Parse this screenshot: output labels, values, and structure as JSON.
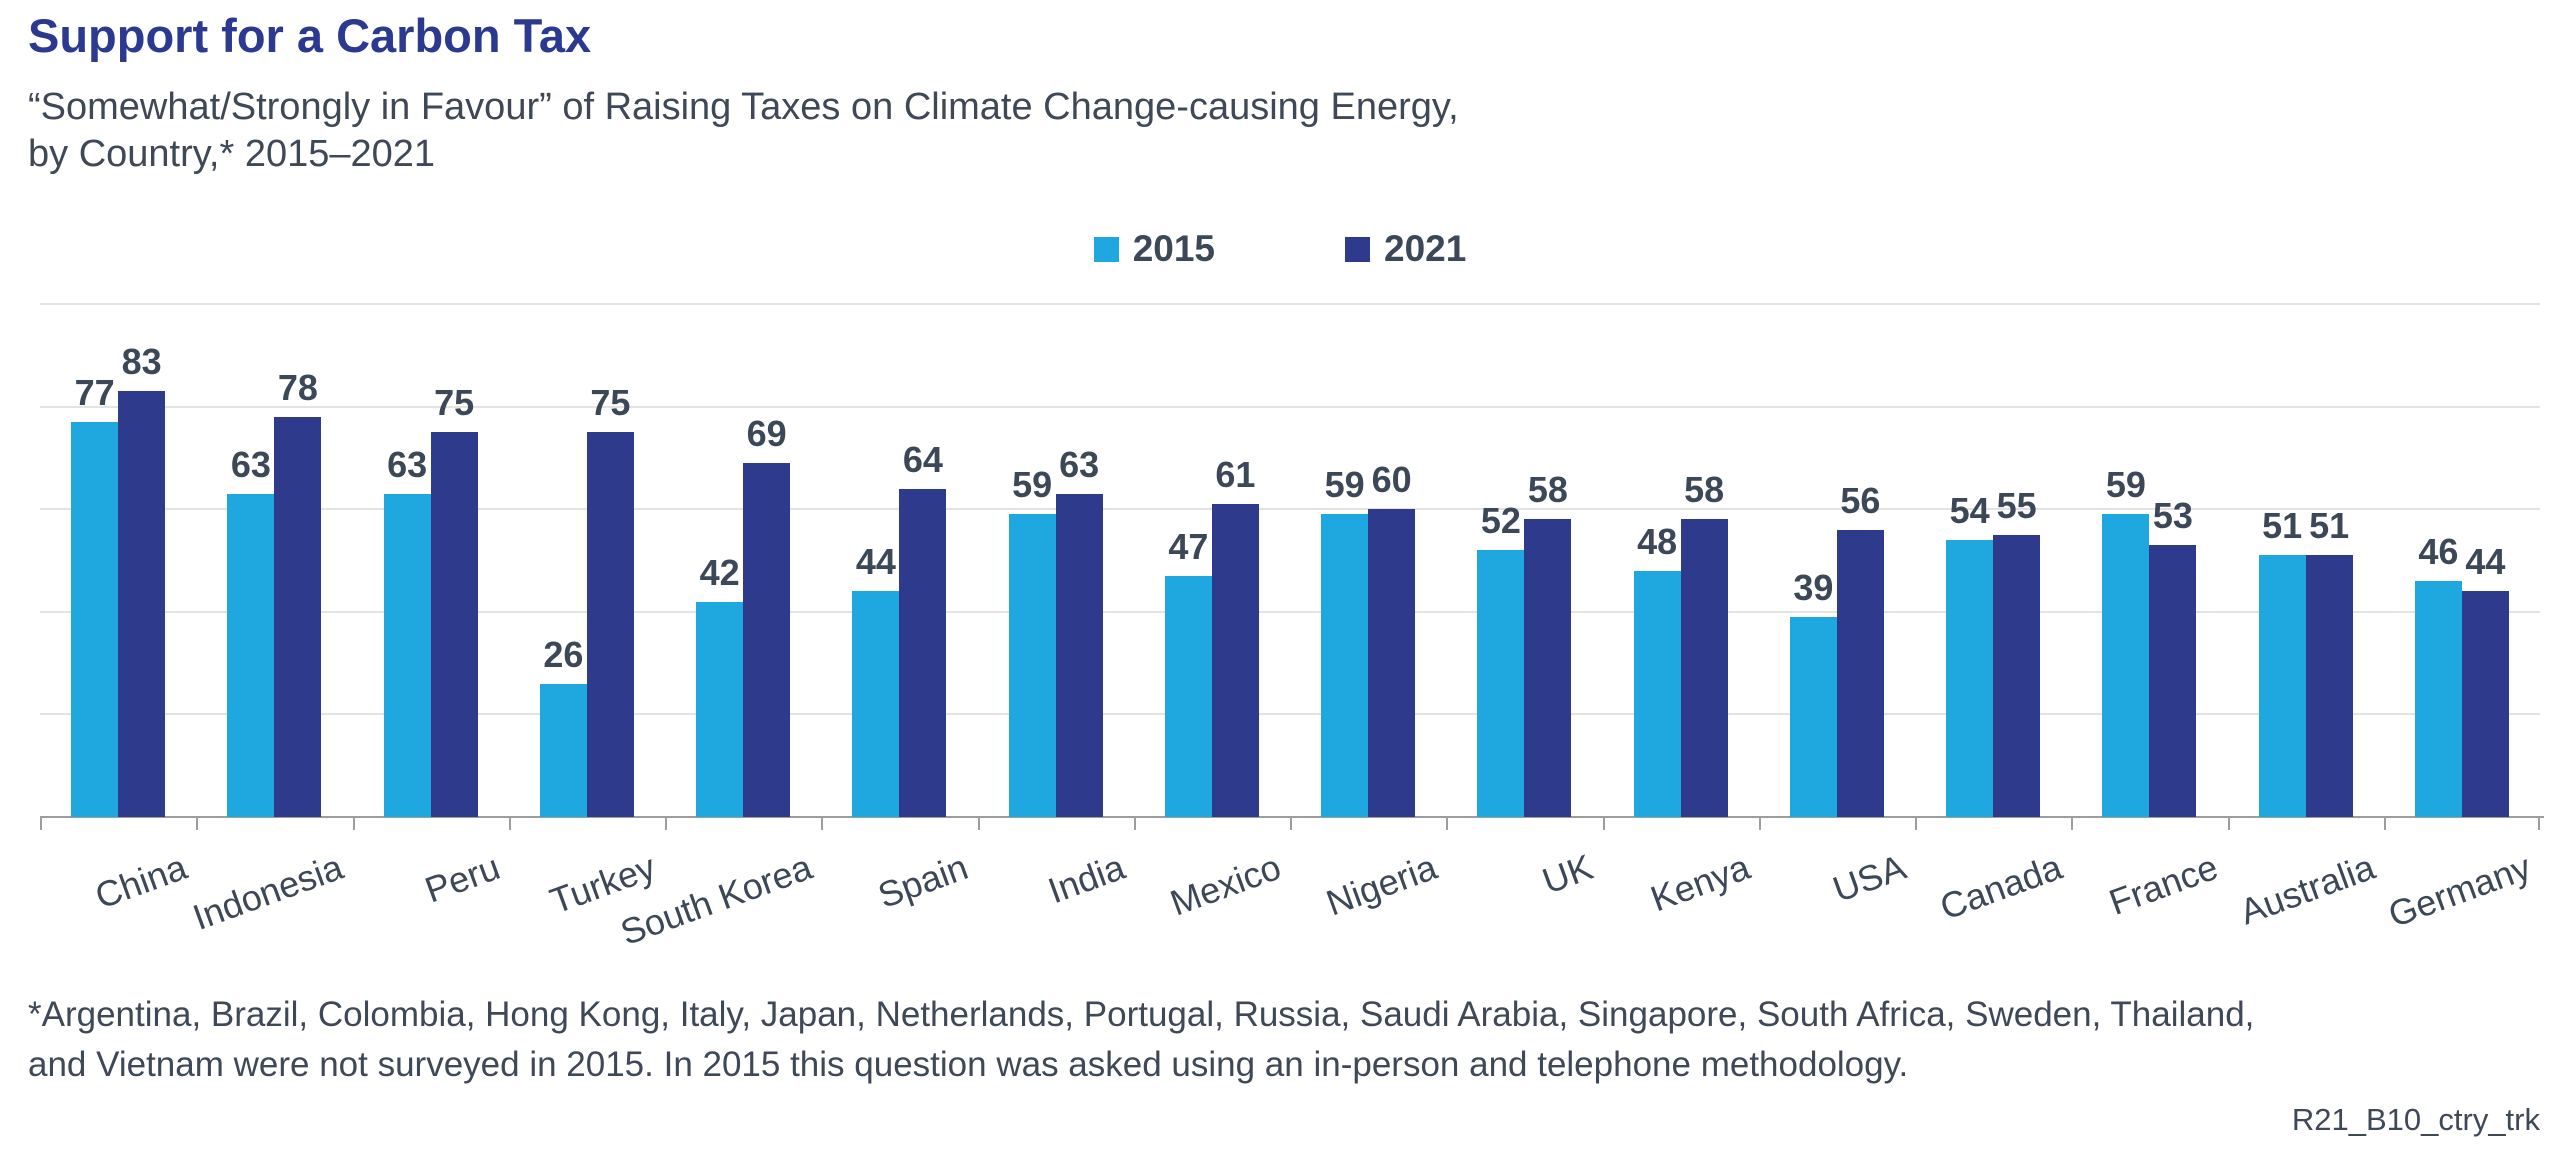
{
  "title": "Support for a Carbon Tax",
  "subtitle_line1": "“Somewhat/Strongly in Favour” of Raising Taxes on Climate Change-causing Energy,",
  "subtitle_line2": "by Country,* 2015–2021",
  "legend": [
    {
      "label": "2015",
      "color": "#1FA8E0"
    },
    {
      "label": "2021",
      "color": "#2E3A8C"
    }
  ],
  "footnote_line1": "*Argentina, Brazil, Colombia, Hong Kong, Italy, Japan, Netherlands, Portugal, Russia, Saudi Arabia, Singapore, South Africa, Sweden, Thailand,",
  "footnote_line2": "and Vietnam were not surveyed in 2015. In 2015 this question was asked using an in-person and telephone methodology.",
  "source_code": "R21_B10_ctry_trk",
  "colors": {
    "series_2015": "#1FA8E0",
    "series_2021": "#2E3A8C",
    "title_blue": "#2B3990",
    "text_dark": "#3C4858",
    "gridline": "#E3E3E3",
    "axis": "#9D9D9D"
  },
  "chart_data": {
    "type": "bar",
    "title": "Support for a Carbon Tax",
    "subtitle": "“Somewhat/Strongly in Favour” of Raising Taxes on Climate Change-causing Energy, by Country,* 2015–2021",
    "categories": [
      "China",
      "Indonesia",
      "Peru",
      "Turkey",
      "South Korea",
      "Spain",
      "India",
      "Mexico",
      "Nigeria",
      "UK",
      "Kenya",
      "USA",
      "Canada",
      "France",
      "Australia",
      "Germany"
    ],
    "series": [
      {
        "name": "2015",
        "color": "#1FA8E0",
        "values": [
          77,
          63,
          63,
          26,
          42,
          44,
          59,
          47,
          59,
          52,
          48,
          39,
          54,
          59,
          51,
          46
        ]
      },
      {
        "name": "2021",
        "color": "#2E3A8C",
        "values": [
          83,
          78,
          75,
          75,
          69,
          64,
          63,
          61,
          60,
          58,
          58,
          56,
          55,
          53,
          51,
          44
        ]
      }
    ],
    "ylim": [
      0,
      100
    ],
    "gridline_values": [
      20,
      40,
      60,
      80,
      100
    ],
    "grid": true,
    "y_axis_labels_shown": false,
    "data_labels_shown": true,
    "legend_position": "top"
  }
}
